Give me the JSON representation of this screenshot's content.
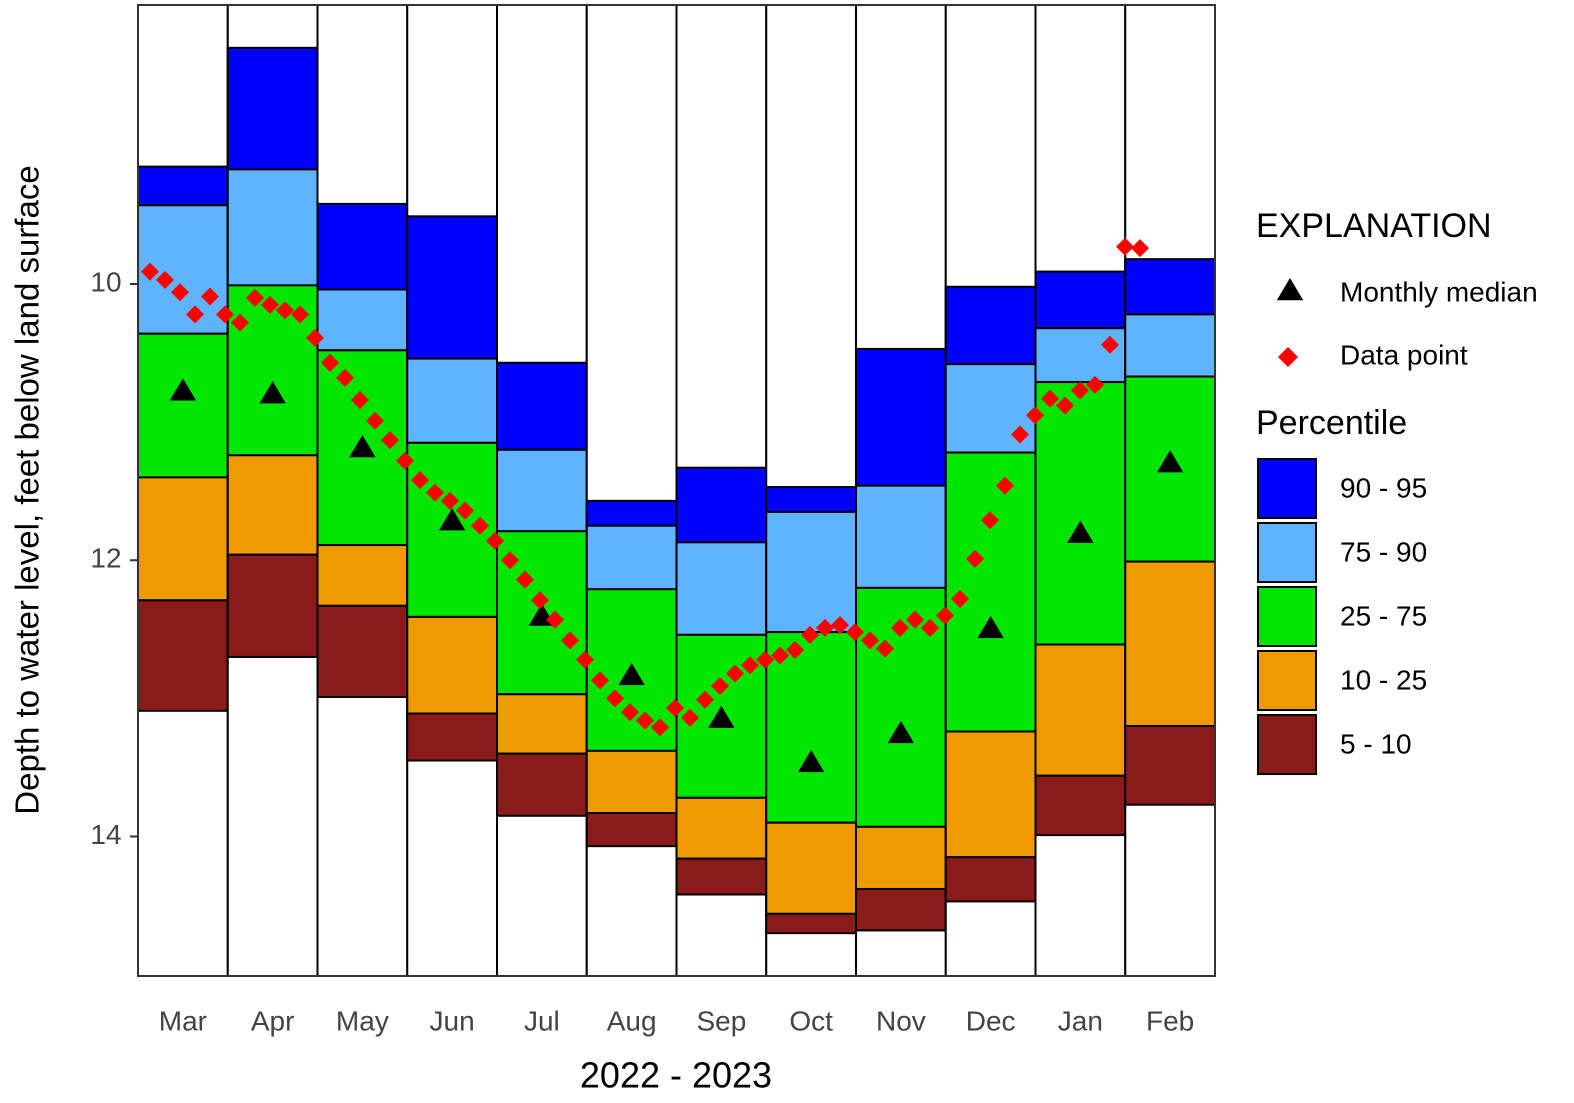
{
  "chart_data": {
    "type": "percentile_band",
    "y_label": "Depth to water level, feet below land surface",
    "x_label": "2022 - 2023",
    "categories": [
      "Mar",
      "Apr",
      "May",
      "Jun",
      "Jul",
      "Aug",
      "Sep",
      "Oct",
      "Nov",
      "Dec",
      "Jan",
      "Feb"
    ],
    "ylim": [
      7.98,
      15.01
    ],
    "y_inverted": true,
    "yticks": [
      10,
      12,
      14
    ],
    "percentile_levels": [
      [
        9.15,
        8.29,
        9.42,
        9.51,
        10.57,
        11.57,
        11.33,
        11.47,
        10.47,
        10.02,
        9.91,
        9.82
      ],
      [
        9.43,
        9.17,
        10.04,
        10.54,
        11.2,
        11.75,
        11.87,
        11.65,
        11.46,
        10.58,
        10.32,
        10.22
      ],
      [
        10.36,
        10.01,
        10.48,
        11.15,
        11.79,
        12.21,
        12.54,
        12.52,
        12.2,
        11.22,
        10.71,
        10.67
      ],
      [
        11.4,
        11.24,
        11.89,
        12.41,
        12.97,
        13.38,
        13.72,
        13.9,
        13.93,
        13.24,
        12.61,
        12.01
      ],
      [
        12.29,
        11.96,
        12.33,
        13.11,
        13.4,
        13.83,
        14.16,
        14.56,
        14.38,
        14.15,
        13.56,
        13.2
      ],
      [
        13.09,
        12.7,
        12.99,
        13.45,
        13.85,
        14.07,
        14.42,
        14.7,
        14.68,
        14.47,
        13.99,
        13.77
      ]
    ],
    "legend_title": "EXPLANATION",
    "band_title": "Percentile",
    "bands": [
      {
        "name": "90 - 95",
        "color": "#0000ff"
      },
      {
        "name": "75 - 90",
        "color": "#60b4ff"
      },
      {
        "name": "25 - 75",
        "color": "#00e600"
      },
      {
        "name": "10 - 25",
        "color": "#ee9a00"
      },
      {
        "name": "5 - 10",
        "color": "#8b1a1a"
      }
    ],
    "median": {
      "name": "Monthly median",
      "color": "#000000",
      "values": [
        10.77,
        10.79,
        11.18,
        11.71,
        12.4,
        12.83,
        13.14,
        13.46,
        13.25,
        12.49,
        11.8,
        11.29
      ]
    },
    "data_points": {
      "name": "Data point",
      "color": "#ff0000",
      "values": [
        9.91,
        9.97,
        10.06,
        10.22,
        10.09,
        10.22,
        10.28,
        10.1,
        10.15,
        10.19,
        10.22,
        10.39,
        10.57,
        10.68,
        10.84,
        10.99,
        11.13,
        11.28,
        11.42,
        11.51,
        11.57,
        11.64,
        11.75,
        11.86,
        12.0,
        12.14,
        12.29,
        12.43,
        12.58,
        12.72,
        12.87,
        13.0,
        13.1,
        13.16,
        13.21,
        13.07,
        13.14,
        13.01,
        12.91,
        12.82,
        12.76,
        12.72,
        12.69,
        12.65,
        12.54,
        12.49,
        12.47,
        12.52,
        12.58,
        12.64,
        12.49,
        12.43,
        12.49,
        12.4,
        12.28,
        11.99,
        11.71,
        11.46,
        11.09,
        10.95,
        10.83,
        10.88,
        10.77,
        10.73,
        10.44,
        9.73,
        9.74
      ]
    }
  }
}
